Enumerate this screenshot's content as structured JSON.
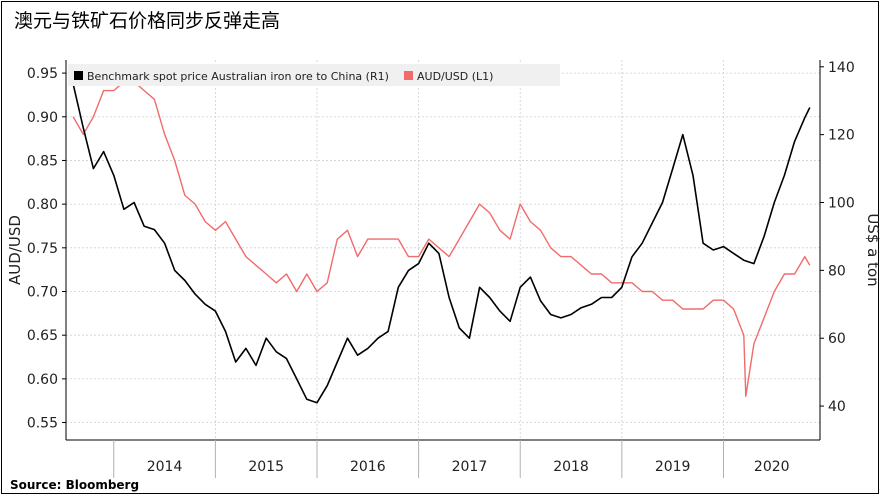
{
  "title": "澳元与铁矿石价格同步反弹走高",
  "source": "Source: Bloomberg",
  "chart_data": {
    "type": "line",
    "x_labels": [
      "2014",
      "2015",
      "2016",
      "2017",
      "2018",
      "2019",
      "2020"
    ],
    "left_axis": {
      "label": "AUD/USD",
      "range": [
        0.53,
        0.965
      ],
      "ticks": [
        "0.95",
        "0.90",
        "0.85",
        "0.80",
        "0.75",
        "0.70",
        "0.65",
        "0.60",
        "0.55"
      ]
    },
    "right_axis": {
      "label": "US$ a ton",
      "range": [
        30,
        142
      ],
      "ticks": [
        "140",
        "120",
        "100",
        "80",
        "60",
        "40"
      ]
    },
    "legend": [
      {
        "name": "Benchmark spot price Australian iron ore to China (R1)",
        "color": "#000000"
      },
      {
        "name": "AUD/USD  (L1)",
        "color": "#f26b6b"
      }
    ],
    "series": [
      {
        "name": "Benchmark spot price Australian iron ore to China (R1)",
        "axis": "right",
        "color": "#000000",
        "points": [
          [
            2013.6,
            135
          ],
          [
            2013.7,
            122
          ],
          [
            2013.8,
            110
          ],
          [
            2013.9,
            115
          ],
          [
            2014.0,
            108
          ],
          [
            2014.1,
            98
          ],
          [
            2014.2,
            100
          ],
          [
            2014.3,
            93
          ],
          [
            2014.4,
            92
          ],
          [
            2014.5,
            88
          ],
          [
            2014.6,
            80
          ],
          [
            2014.7,
            77
          ],
          [
            2014.8,
            73
          ],
          [
            2014.9,
            70
          ],
          [
            2015.0,
            68
          ],
          [
            2015.1,
            62
          ],
          [
            2015.2,
            53
          ],
          [
            2015.3,
            57
          ],
          [
            2015.4,
            52
          ],
          [
            2015.5,
            60
          ],
          [
            2015.6,
            56
          ],
          [
            2015.7,
            54
          ],
          [
            2015.8,
            48
          ],
          [
            2015.9,
            42
          ],
          [
            2016.0,
            41
          ],
          [
            2016.1,
            46
          ],
          [
            2016.2,
            53
          ],
          [
            2016.3,
            60
          ],
          [
            2016.4,
            55
          ],
          [
            2016.5,
            57
          ],
          [
            2016.6,
            60
          ],
          [
            2016.7,
            62
          ],
          [
            2016.8,
            75
          ],
          [
            2016.9,
            80
          ],
          [
            2017.0,
            82
          ],
          [
            2017.1,
            88
          ],
          [
            2017.2,
            85
          ],
          [
            2017.3,
            72
          ],
          [
            2017.4,
            63
          ],
          [
            2017.5,
            60
          ],
          [
            2017.6,
            75
          ],
          [
            2017.7,
            72
          ],
          [
            2017.8,
            68
          ],
          [
            2017.9,
            65
          ],
          [
            2018.0,
            75
          ],
          [
            2018.1,
            78
          ],
          [
            2018.2,
            71
          ],
          [
            2018.3,
            67
          ],
          [
            2018.4,
            66
          ],
          [
            2018.5,
            67
          ],
          [
            2018.6,
            69
          ],
          [
            2018.7,
            70
          ],
          [
            2018.8,
            72
          ],
          [
            2018.9,
            72
          ],
          [
            2019.0,
            75
          ],
          [
            2019.1,
            84
          ],
          [
            2019.2,
            88
          ],
          [
            2019.3,
            94
          ],
          [
            2019.4,
            100
          ],
          [
            2019.5,
            110
          ],
          [
            2019.6,
            120
          ],
          [
            2019.7,
            108
          ],
          [
            2019.8,
            88
          ],
          [
            2019.9,
            86
          ],
          [
            2020.0,
            87
          ],
          [
            2020.1,
            85
          ],
          [
            2020.2,
            83
          ],
          [
            2020.3,
            82
          ],
          [
            2020.4,
            90
          ],
          [
            2020.5,
            100
          ],
          [
            2020.6,
            108
          ],
          [
            2020.7,
            118
          ],
          [
            2020.8,
            125
          ],
          [
            2020.85,
            128
          ]
        ]
      },
      {
        "name": "AUD/USD  (L1)",
        "axis": "left",
        "color": "#f26b6b",
        "points": [
          [
            2013.6,
            0.9
          ],
          [
            2013.7,
            0.88
          ],
          [
            2013.8,
            0.9
          ],
          [
            2013.9,
            0.93
          ],
          [
            2014.0,
            0.93
          ],
          [
            2014.1,
            0.94
          ],
          [
            2014.2,
            0.94
          ],
          [
            2014.3,
            0.93
          ],
          [
            2014.4,
            0.92
          ],
          [
            2014.5,
            0.88
          ],
          [
            2014.6,
            0.85
          ],
          [
            2014.7,
            0.81
          ],
          [
            2014.8,
            0.8
          ],
          [
            2014.9,
            0.78
          ],
          [
            2015.0,
            0.77
          ],
          [
            2015.1,
            0.78
          ],
          [
            2015.2,
            0.76
          ],
          [
            2015.3,
            0.74
          ],
          [
            2015.4,
            0.73
          ],
          [
            2015.5,
            0.72
          ],
          [
            2015.6,
            0.71
          ],
          [
            2015.7,
            0.72
          ],
          [
            2015.8,
            0.7
          ],
          [
            2015.9,
            0.72
          ],
          [
            2016.0,
            0.7
          ],
          [
            2016.1,
            0.71
          ],
          [
            2016.2,
            0.76
          ],
          [
            2016.3,
            0.77
          ],
          [
            2016.4,
            0.74
          ],
          [
            2016.5,
            0.76
          ],
          [
            2016.6,
            0.76
          ],
          [
            2016.7,
            0.76
          ],
          [
            2016.8,
            0.76
          ],
          [
            2016.9,
            0.74
          ],
          [
            2017.0,
            0.74
          ],
          [
            2017.1,
            0.76
          ],
          [
            2017.2,
            0.75
          ],
          [
            2017.3,
            0.74
          ],
          [
            2017.4,
            0.76
          ],
          [
            2017.5,
            0.78
          ],
          [
            2017.6,
            0.8
          ],
          [
            2017.7,
            0.79
          ],
          [
            2017.8,
            0.77
          ],
          [
            2017.9,
            0.76
          ],
          [
            2018.0,
            0.8
          ],
          [
            2018.1,
            0.78
          ],
          [
            2018.2,
            0.77
          ],
          [
            2018.3,
            0.75
          ],
          [
            2018.4,
            0.74
          ],
          [
            2018.5,
            0.74
          ],
          [
            2018.6,
            0.73
          ],
          [
            2018.7,
            0.72
          ],
          [
            2018.8,
            0.72
          ],
          [
            2018.9,
            0.71
          ],
          [
            2019.0,
            0.71
          ],
          [
            2019.1,
            0.71
          ],
          [
            2019.2,
            0.7
          ],
          [
            2019.3,
            0.7
          ],
          [
            2019.4,
            0.69
          ],
          [
            2019.5,
            0.69
          ],
          [
            2019.6,
            0.68
          ],
          [
            2019.7,
            0.68
          ],
          [
            2019.8,
            0.68
          ],
          [
            2019.9,
            0.69
          ],
          [
            2020.0,
            0.69
          ],
          [
            2020.1,
            0.68
          ],
          [
            2020.2,
            0.65
          ],
          [
            2020.22,
            0.58
          ],
          [
            2020.3,
            0.64
          ],
          [
            2020.4,
            0.67
          ],
          [
            2020.5,
            0.7
          ],
          [
            2020.6,
            0.72
          ],
          [
            2020.7,
            0.72
          ],
          [
            2020.8,
            0.74
          ],
          [
            2020.85,
            0.73
          ]
        ]
      }
    ],
    "grid": true,
    "legend_position": "top"
  }
}
